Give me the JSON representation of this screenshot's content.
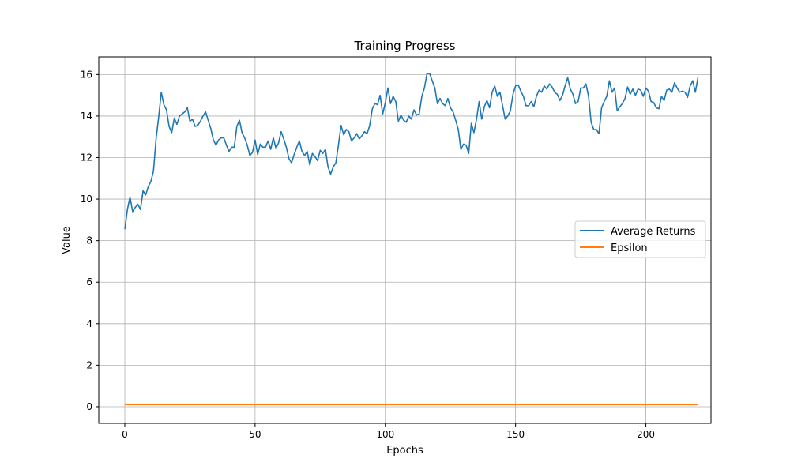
{
  "chart_data": {
    "type": "line",
    "title": "Training Progress",
    "xlabel": "Epochs",
    "ylabel": "Value",
    "xlim": [
      -10,
      225
    ],
    "ylim": [
      -0.8,
      16.85
    ],
    "xticks": [
      0,
      50,
      100,
      150,
      200
    ],
    "yticks": [
      0,
      2,
      4,
      6,
      8,
      10,
      12,
      14,
      16
    ],
    "grid": true,
    "legend_position": "center-right",
    "series": [
      {
        "name": "Average Returns",
        "color": "#1f77b4",
        "x_start": 0,
        "x_step": 1,
        "values": [
          8.55,
          9.5,
          10.1,
          9.4,
          9.6,
          9.75,
          9.5,
          10.4,
          10.2,
          10.6,
          10.85,
          11.35,
          12.9,
          13.95,
          15.15,
          14.55,
          14.3,
          13.5,
          13.2,
          13.9,
          13.6,
          14.0,
          14.1,
          14.2,
          14.4,
          13.75,
          13.85,
          13.5,
          13.55,
          13.75,
          14.0,
          14.2,
          13.8,
          13.4,
          12.85,
          12.6,
          12.85,
          12.95,
          12.95,
          12.6,
          12.3,
          12.5,
          12.5,
          13.5,
          13.8,
          13.2,
          12.95,
          12.6,
          12.1,
          12.25,
          12.85,
          12.15,
          12.65,
          12.5,
          12.5,
          12.8,
          12.4,
          12.95,
          12.45,
          12.7,
          13.25,
          12.9,
          12.5,
          11.95,
          11.75,
          12.15,
          12.5,
          12.8,
          12.3,
          12.1,
          12.3,
          11.65,
          12.2,
          12.05,
          11.85,
          12.35,
          12.2,
          12.4,
          11.55,
          11.2,
          11.55,
          11.75,
          12.6,
          13.55,
          13.1,
          13.35,
          13.25,
          12.8,
          12.95,
          13.15,
          12.9,
          13.05,
          13.25,
          13.15,
          13.55,
          14.35,
          14.6,
          14.55,
          15.0,
          14.1,
          14.65,
          15.35,
          14.6,
          14.95,
          14.7,
          13.75,
          14.05,
          13.8,
          13.7,
          14.0,
          13.85,
          14.3,
          14.05,
          14.1,
          14.95,
          15.35,
          16.05,
          16.05,
          15.7,
          15.35,
          14.6,
          14.85,
          14.6,
          14.5,
          14.85,
          14.4,
          14.2,
          13.8,
          13.35,
          12.4,
          12.65,
          12.6,
          12.2,
          13.65,
          13.2,
          13.85,
          14.7,
          13.85,
          14.45,
          14.75,
          14.4,
          15.15,
          15.45,
          14.95,
          15.15,
          14.5,
          13.85,
          14.0,
          14.25,
          15.05,
          15.45,
          15.5,
          15.2,
          14.95,
          14.5,
          14.5,
          14.7,
          14.45,
          14.95,
          15.25,
          15.15,
          15.45,
          15.3,
          15.55,
          15.4,
          15.15,
          15.05,
          14.75,
          15.0,
          15.45,
          15.85,
          15.3,
          15.05,
          14.6,
          14.7,
          15.35,
          15.35,
          15.55,
          14.95,
          13.7,
          13.35,
          13.35,
          13.15,
          14.4,
          14.7,
          14.95,
          15.7,
          15.15,
          15.35,
          14.25,
          14.45,
          14.6,
          14.85,
          15.4,
          15.05,
          15.3,
          15.0,
          15.3,
          15.25,
          14.95,
          15.35,
          15.2,
          14.7,
          14.65,
          14.4,
          14.35,
          14.95,
          14.75,
          15.25,
          15.3,
          15.15,
          15.6,
          15.35,
          15.15,
          15.2,
          15.15,
          14.9,
          15.45,
          15.7,
          15.15,
          15.85
        ]
      },
      {
        "name": "Epsilon",
        "color": "#ff7f0e",
        "x_start": 0,
        "x_step": 1,
        "values_constant": 0.1,
        "x_end": 220
      }
    ]
  }
}
